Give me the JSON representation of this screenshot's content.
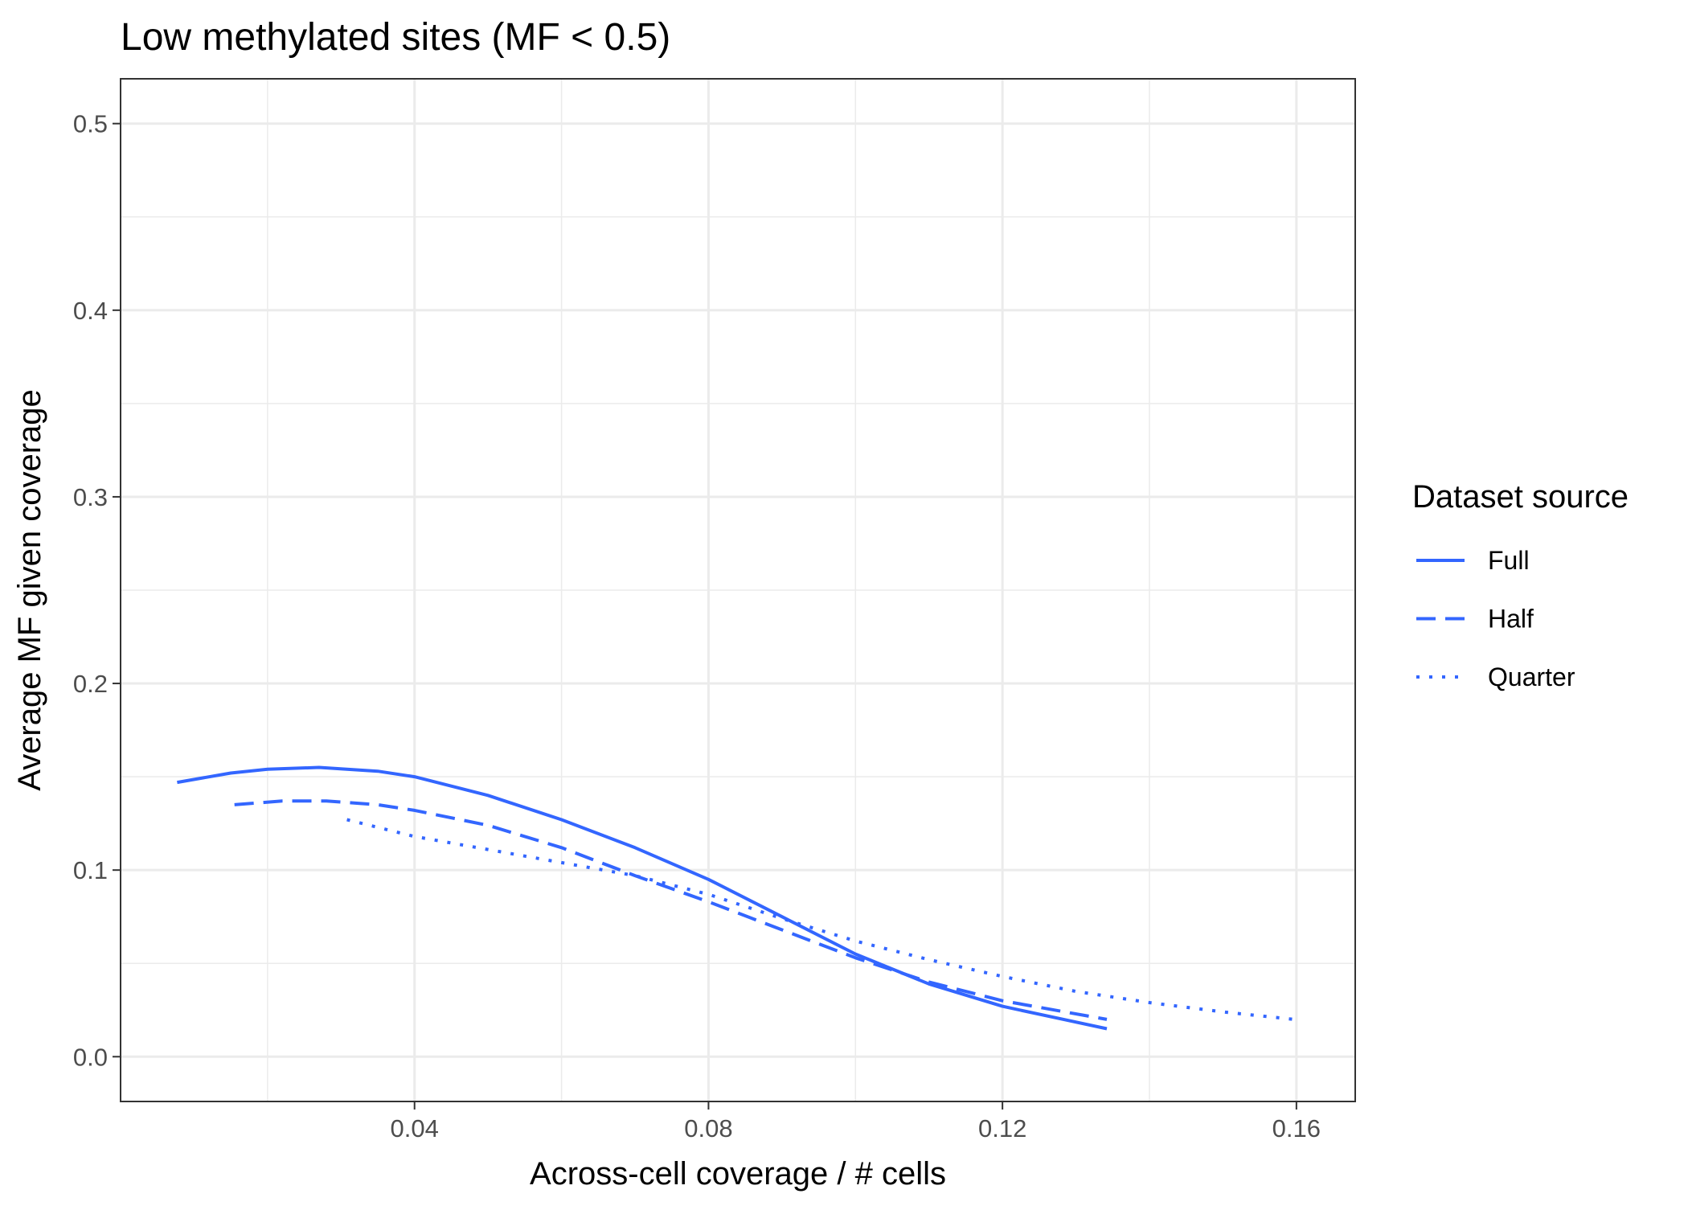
{
  "chart_data": {
    "type": "line",
    "title": "Low methylated sites (MF < 0.5)",
    "xlabel": "Across-cell coverage / # cells",
    "ylabel": "Average MF given coverage",
    "xlim": [
      -0.0,
      0.168
    ],
    "ylim": [
      -0.024,
      0.524
    ],
    "x_ticks": [
      0.04,
      0.08,
      0.12,
      0.16
    ],
    "x_tick_labels": [
      "0.04",
      "0.08",
      "0.12",
      "0.16"
    ],
    "y_ticks": [
      0.0,
      0.1,
      0.2,
      0.3,
      0.4,
      0.5
    ],
    "y_tick_labels": [
      "0.0",
      "0.1",
      "0.2",
      "0.3",
      "0.4",
      "0.5"
    ],
    "grid": true,
    "legend_title": "Dataset source",
    "legend_position": "right",
    "color": "#3366ff",
    "series": [
      {
        "name": "Full",
        "linestyle": "solid",
        "x": [
          0.0077,
          0.015,
          0.02,
          0.027,
          0.035,
          0.04,
          0.05,
          0.06,
          0.07,
          0.08,
          0.09,
          0.1,
          0.11,
          0.12,
          0.1342
        ],
        "y": [
          0.147,
          0.152,
          0.154,
          0.155,
          0.153,
          0.15,
          0.14,
          0.127,
          0.112,
          0.095,
          0.075,
          0.055,
          0.039,
          0.027,
          0.015
        ]
      },
      {
        "name": "Half",
        "linestyle": "dashed",
        "x": [
          0.0155,
          0.022,
          0.028,
          0.035,
          0.04,
          0.05,
          0.06,
          0.07,
          0.08,
          0.09,
          0.1,
          0.11,
          0.12,
          0.1342
        ],
        "y": [
          0.135,
          0.137,
          0.137,
          0.135,
          0.132,
          0.124,
          0.112,
          0.097,
          0.083,
          0.068,
          0.053,
          0.04,
          0.03,
          0.02
        ]
      },
      {
        "name": "Quarter",
        "linestyle": "dotted",
        "x": [
          0.0308,
          0.04,
          0.05,
          0.06,
          0.07,
          0.08,
          0.09,
          0.1,
          0.11,
          0.12,
          0.13,
          0.14,
          0.15,
          0.1597
        ],
        "y": [
          0.127,
          0.118,
          0.111,
          0.104,
          0.097,
          0.087,
          0.074,
          0.062,
          0.052,
          0.043,
          0.035,
          0.029,
          0.024,
          0.02
        ]
      }
    ]
  }
}
